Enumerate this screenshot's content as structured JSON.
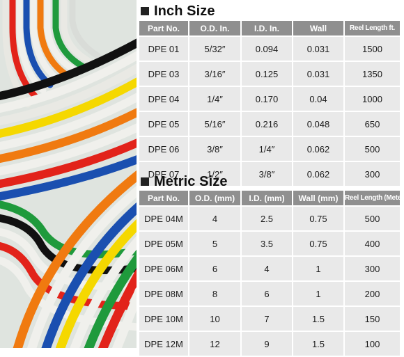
{
  "inch": {
    "title": "Inch Size",
    "headers": [
      "Part No.",
      "O.D. In.",
      "I.D. In.",
      "Wall",
      "Reel Length ft."
    ],
    "rows": [
      [
        "DPE 01",
        "5/32″",
        "0.094",
        "0.031",
        "1500"
      ],
      [
        "DPE 03",
        "3/16″",
        "0.125",
        "0.031",
        "1350"
      ],
      [
        "DPE 04",
        "1/4″",
        "0.170",
        "0.04",
        "1000"
      ],
      [
        "DPE 05",
        "5/16″",
        "0.216",
        "0.048",
        "650"
      ],
      [
        "DPE 06",
        "3/8″",
        "1/4″",
        "0.062",
        "500"
      ],
      [
        "DPE 07",
        "1/2″",
        "3/8″",
        "0.062",
        "300"
      ]
    ]
  },
  "metric": {
    "title": "Metric Size",
    "headers": [
      "Part No.",
      "O.D. (mm)",
      "I.D. (mm)",
      "Wall (mm)",
      "Reel Length (Meter)"
    ],
    "rows": [
      [
        "DPE 04M",
        "4",
        "2.5",
        "0.75",
        "500"
      ],
      [
        "DPE 05M",
        "5",
        "3.5",
        "0.75",
        "400"
      ],
      [
        "DPE 06M",
        "6",
        "4",
        "1",
        "300"
      ],
      [
        "DPE 08M",
        "8",
        "6",
        "1",
        "200"
      ],
      [
        "DPE 10M",
        "10",
        "7",
        "1.5",
        "150"
      ],
      [
        "DPE 12M",
        "12",
        "9",
        "1.5",
        "100"
      ]
    ]
  },
  "colors": {
    "header_bg": "#8f8f8f",
    "cell_bg": "#e9e9e9",
    "tubing": [
      "#f0f0ec",
      "#111111",
      "#f5d800",
      "#e2231a",
      "#1a4fb0",
      "#1f9a3c",
      "#f07a10"
    ]
  }
}
